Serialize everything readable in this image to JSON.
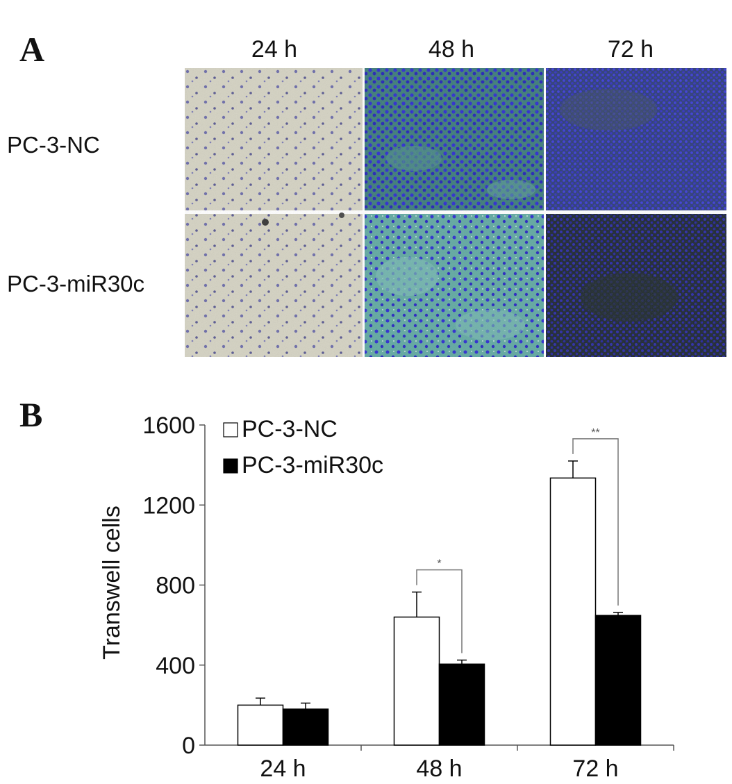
{
  "panel_a": {
    "letter": "A",
    "columns": [
      "24 h",
      "48 h",
      "72 h"
    ],
    "rows": [
      "PC-3-NC",
      "PC-3-miR30c"
    ]
  },
  "panel_b": {
    "letter": "B"
  },
  "colors": {
    "nc_fill": "#ffffff",
    "mir_fill": "#000000",
    "light_bg": "#d4d2c2",
    "light_cell": "#6a6aa8",
    "blue_cell": "#2a2ad0",
    "blue_bg48": "#3a7a78",
    "blue_bg72_nc": "#2a3a78",
    "blue_bg72_mir": "#1a2430"
  },
  "chart_data": {
    "type": "bar",
    "categories": [
      "24 h",
      "48 h",
      "72 h"
    ],
    "series": [
      {
        "name": "PC-3-NC",
        "values": [
          200,
          640,
          1335
        ],
        "errors": [
          35,
          125,
          85
        ]
      },
      {
        "name": "PC-3-miR30c",
        "values": [
          180,
          405,
          648
        ],
        "errors": [
          30,
          20,
          15
        ]
      }
    ],
    "ylabel": "Transwell cells",
    "ylim": [
      0,
      1600
    ],
    "yticks": [
      "0",
      "400",
      "800",
      "1200",
      "1600"
    ],
    "legend": "top-left",
    "significance": [
      {
        "category": "48 h",
        "mark": "*"
      },
      {
        "category": "72 h",
        "mark": "**"
      }
    ]
  }
}
